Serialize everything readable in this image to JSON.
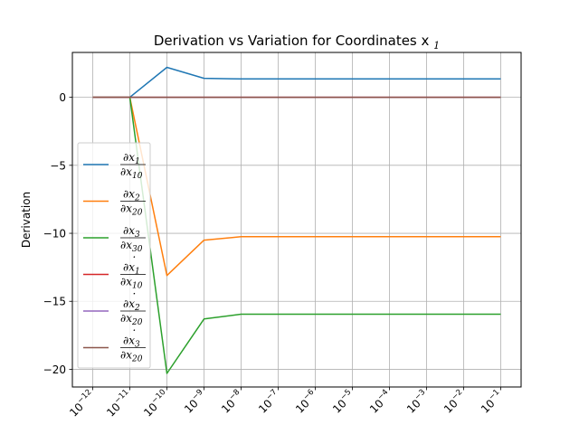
{
  "chart_data": {
    "type": "line",
    "title": "Derivation vs Variation for Coordinates x",
    "title_subscript": "1",
    "xlabel": "",
    "ylabel": "Derivation",
    "x_scale": "log",
    "x": [
      1e-12,
      1e-11,
      1e-10,
      1e-09,
      1e-08,
      1e-07,
      1e-06,
      1e-05,
      0.0001,
      0.001,
      0.01,
      0.1
    ],
    "x_tick_exponents": [
      "−12",
      "−11",
      "−10",
      "−9",
      "−8",
      "−7",
      "−6",
      "−5",
      "−4",
      "−3",
      "−2",
      "−1"
    ],
    "x_tick_base": "10",
    "ylim": [
      -21.3,
      3.3
    ],
    "y_ticks": [
      0,
      -5,
      -10,
      -15,
      -20
    ],
    "y_tick_labels": [
      "0",
      "−5",
      "−10",
      "−15",
      "−20"
    ],
    "grid": true,
    "legend_position": "center-left",
    "series": [
      {
        "name": "∂x1/∂x10",
        "num": "∂x",
        "num_sub": "1",
        "den": "∂x",
        "den_sub": "10",
        "dot": false,
        "color": "#1f77b4",
        "values": [
          0,
          0,
          2.2,
          1.4,
          1.35,
          1.35,
          1.35,
          1.35,
          1.35,
          1.35,
          1.35,
          1.35
        ]
      },
      {
        "name": "∂x2/∂x20",
        "num": "∂x",
        "num_sub": "2",
        "den": "∂x",
        "den_sub": "20",
        "dot": false,
        "color": "#ff7f0e",
        "values": [
          0,
          0,
          -13.1,
          -10.5,
          -10.25,
          -10.25,
          -10.25,
          -10.25,
          -10.25,
          -10.25,
          -10.25,
          -10.25
        ]
      },
      {
        "name": "∂x3/∂x30",
        "num": "∂x",
        "num_sub": "3",
        "den": "∂x",
        "den_sub": "30",
        "dot": false,
        "color": "#2ca02c",
        "values": [
          0,
          0,
          -20.3,
          -16.3,
          -15.95,
          -15.95,
          -15.95,
          -15.95,
          -15.95,
          -15.95,
          -15.95,
          -15.95
        ]
      },
      {
        "name": "∂ẋ1/∂x10",
        "num": "∂x",
        "num_sub": "1",
        "den": "∂x",
        "den_sub": "10",
        "dot": true,
        "color": "#d62728",
        "values": [
          0,
          0,
          0,
          0,
          0,
          0,
          0,
          0,
          0,
          0,
          0,
          0
        ]
      },
      {
        "name": "∂ẋ2/∂x20",
        "num": "∂x",
        "num_sub": "2",
        "den": "∂x",
        "den_sub": "20",
        "dot": true,
        "color": "#9467bd",
        "values": [
          0,
          0,
          0,
          0,
          0,
          0,
          0,
          0,
          0,
          0,
          0,
          0
        ]
      },
      {
        "name": "∂ẋ3/∂x20",
        "num": "∂x",
        "num_sub": "3",
        "den": "∂x",
        "den_sub": "20",
        "dot": true,
        "color": "#8c564b",
        "values": [
          0,
          0,
          0,
          0,
          0,
          0,
          0,
          0,
          0,
          0,
          0,
          0
        ]
      }
    ]
  }
}
